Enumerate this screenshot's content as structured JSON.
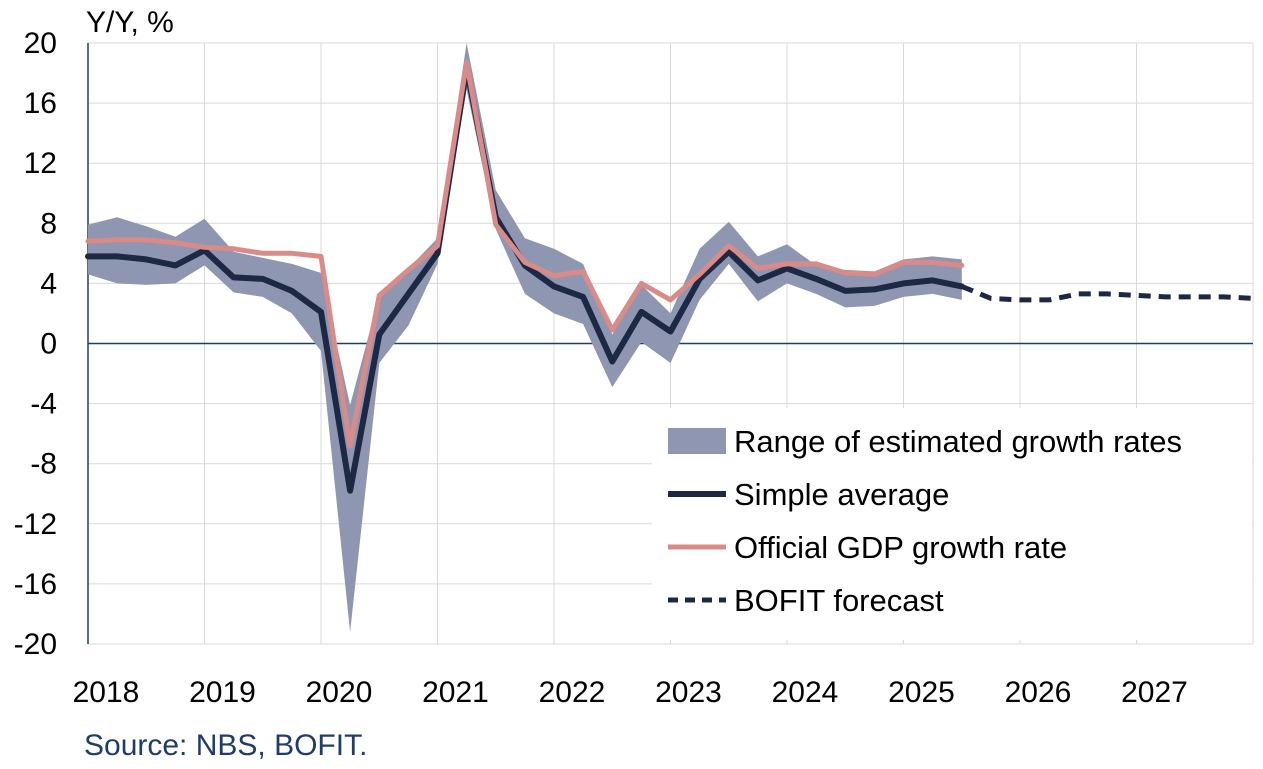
{
  "chart_data": {
    "type": "line",
    "title": "",
    "ylabel": "Y/Y, %",
    "xlabel": "",
    "ylim": [
      -20,
      20
    ],
    "xlim": [
      2018.0,
      2028.0
    ],
    "grid": true,
    "y_ticks": [
      "20",
      "16",
      "12",
      "8",
      "4",
      "0",
      "-4",
      "-8",
      "-12",
      "-16",
      "-20"
    ],
    "x_ticks": [
      "2018",
      "2019",
      "2020",
      "2021",
      "2022",
      "2023",
      "2024",
      "2025",
      "2026",
      "2027"
    ],
    "legend_position": "bottom-right",
    "series": [
      {
        "name": "Range of estimated growth rates",
        "kind": "band",
        "color": "#8f96b2",
        "x": [
          2018.0,
          2018.25,
          2018.5,
          2018.75,
          2019.0,
          2019.25,
          2019.5,
          2019.75,
          2020.0,
          2020.25,
          2020.5,
          2020.75,
          2021.0,
          2021.25,
          2021.5,
          2021.75,
          2022.0,
          2022.25,
          2022.5,
          2022.75,
          2023.0,
          2023.25,
          2023.5,
          2023.75,
          2024.0,
          2024.25,
          2024.5,
          2024.75,
          2025.0,
          2025.25,
          2025.5
        ],
        "low": [
          4.6,
          4.0,
          3.9,
          4.0,
          5.2,
          3.4,
          3.1,
          2.0,
          -0.5,
          -19.2,
          -1.3,
          1.2,
          5.3,
          16.9,
          7.6,
          3.3,
          2.0,
          1.3,
          -2.9,
          0.1,
          -1.3,
          2.9,
          5.3,
          2.8,
          4.0,
          3.3,
          2.4,
          2.5,
          3.1,
          3.3,
          2.9
        ],
        "high": [
          7.9,
          8.4,
          7.8,
          7.1,
          8.3,
          6.1,
          5.7,
          5.3,
          4.7,
          -4.1,
          3.2,
          5.0,
          7.0,
          20.0,
          10.2,
          7.0,
          6.3,
          5.3,
          0.6,
          3.9,
          2.0,
          6.3,
          8.1,
          5.8,
          6.6,
          5.2,
          4.9,
          4.8,
          5.6,
          5.8,
          5.6
        ]
      },
      {
        "name": "Simple average",
        "kind": "line",
        "color": "#1d2845",
        "x": [
          2018.0,
          2018.25,
          2018.5,
          2018.75,
          2019.0,
          2019.25,
          2019.5,
          2019.75,
          2020.0,
          2020.25,
          2020.5,
          2020.75,
          2021.0,
          2021.25,
          2021.5,
          2021.75,
          2022.0,
          2022.25,
          2022.5,
          2022.75,
          2023.0,
          2023.25,
          2023.5,
          2023.75,
          2024.0,
          2024.25,
          2024.5,
          2024.75,
          2025.0,
          2025.25,
          2025.5
        ],
        "values": [
          5.8,
          5.8,
          5.6,
          5.2,
          6.2,
          4.4,
          4.3,
          3.5,
          2.1,
          -9.8,
          0.6,
          3.3,
          6.0,
          18.3,
          8.4,
          5.2,
          3.8,
          3.1,
          -1.2,
          2.1,
          0.8,
          4.3,
          6.1,
          4.2,
          5.0,
          4.3,
          3.5,
          3.6,
          4.0,
          4.2,
          3.8
        ]
      },
      {
        "name": "Official GDP growth rate",
        "kind": "line",
        "color": "#d98b88",
        "x": [
          2018.0,
          2018.25,
          2018.5,
          2018.75,
          2019.0,
          2019.25,
          2019.5,
          2019.75,
          2020.0,
          2020.25,
          2020.5,
          2020.75,
          2021.0,
          2021.25,
          2021.5,
          2021.75,
          2022.0,
          2022.25,
          2022.5,
          2022.75,
          2023.0,
          2023.25,
          2023.5,
          2023.75,
          2024.0,
          2024.25,
          2024.5,
          2024.75,
          2025.0,
          2025.25,
          2025.5
        ],
        "values": [
          6.8,
          6.9,
          6.9,
          6.7,
          6.4,
          6.3,
          6.0,
          6.0,
          5.8,
          -6.8,
          3.2,
          4.9,
          6.5,
          18.7,
          7.9,
          5.4,
          4.5,
          4.8,
          0.9,
          4.0,
          2.9,
          4.6,
          6.5,
          5.0,
          5.3,
          5.3,
          4.7,
          4.6,
          5.4,
          5.4,
          5.2
        ]
      },
      {
        "name": "BOFIT forecast",
        "kind": "dashed",
        "color": "#1d2845",
        "x": [
          2025.5,
          2025.75,
          2026.0,
          2026.25,
          2026.5,
          2026.75,
          2027.0,
          2027.25,
          2027.5,
          2027.75,
          2028.0
        ],
        "values": [
          3.8,
          3.0,
          2.9,
          2.9,
          3.3,
          3.3,
          3.2,
          3.1,
          3.1,
          3.1,
          3.0
        ]
      }
    ],
    "source": "Source: NBS, BOFIT."
  }
}
